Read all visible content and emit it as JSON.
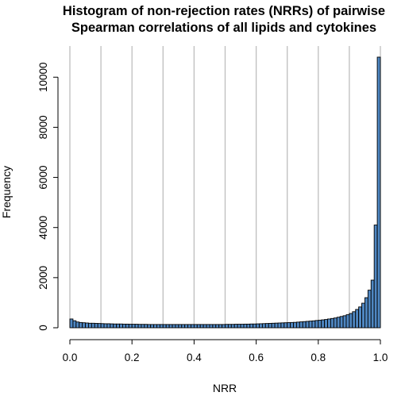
{
  "chart_data": {
    "type": "bar",
    "title": [
      "Histogram of non-rejection rates (NRRs) of pairwise",
      "Spearman correlations of all lipids and cytokines"
    ],
    "xlabel": "NRR",
    "ylabel": "Frequency",
    "xlim": [
      0,
      1
    ],
    "ylim": [
      0,
      12500
    ],
    "x_ticks": [
      0.0,
      0.2,
      0.4,
      0.6,
      0.8,
      1.0
    ],
    "x_tick_labels": [
      "0.0",
      "0.2",
      "0.4",
      "0.6",
      "0.8",
      "1.0"
    ],
    "y_ticks": [
      0,
      2000,
      4000,
      6000,
      8000,
      10000
    ],
    "y_tick_labels": [
      "0",
      "2000",
      "4000",
      "6000",
      "8000",
      "10000"
    ],
    "vertical_gridlines": [
      0.0,
      0.1,
      0.2,
      0.3,
      0.4,
      0.5,
      0.6,
      0.7,
      0.8,
      0.9,
      1.0
    ],
    "grid_color": "#bebebe",
    "bar_color": "#4f87c2",
    "bin_width": 0.01,
    "bin_starts": [
      0.0,
      0.01,
      0.02,
      0.03,
      0.04,
      0.05,
      0.06,
      0.07,
      0.08,
      0.09,
      0.1,
      0.11,
      0.12,
      0.13,
      0.14,
      0.15,
      0.16,
      0.17,
      0.18,
      0.19,
      0.2,
      0.21,
      0.22,
      0.23,
      0.24,
      0.25,
      0.26,
      0.27,
      0.28,
      0.29,
      0.3,
      0.31,
      0.32,
      0.33,
      0.34,
      0.35,
      0.36,
      0.37,
      0.38,
      0.39,
      0.4,
      0.41,
      0.42,
      0.43,
      0.44,
      0.45,
      0.46,
      0.47,
      0.48,
      0.49,
      0.5,
      0.51,
      0.52,
      0.53,
      0.54,
      0.55,
      0.56,
      0.57,
      0.58,
      0.59,
      0.6,
      0.61,
      0.62,
      0.63,
      0.64,
      0.65,
      0.66,
      0.67,
      0.68,
      0.69,
      0.7,
      0.71,
      0.72,
      0.73,
      0.74,
      0.75,
      0.76,
      0.77,
      0.78,
      0.79,
      0.8,
      0.81,
      0.82,
      0.83,
      0.84,
      0.85,
      0.86,
      0.87,
      0.88,
      0.89,
      0.9,
      0.91,
      0.92,
      0.93,
      0.94,
      0.95,
      0.96,
      0.97,
      0.98,
      0.99
    ],
    "values": [
      350,
      280,
      230,
      210,
      200,
      190,
      180,
      180,
      175,
      170,
      165,
      160,
      160,
      155,
      150,
      150,
      150,
      145,
      145,
      140,
      140,
      140,
      135,
      135,
      135,
      130,
      130,
      130,
      130,
      130,
      130,
      130,
      130,
      130,
      130,
      130,
      130,
      130,
      130,
      130,
      130,
      130,
      130,
      130,
      130,
      130,
      130,
      130,
      130,
      130,
      135,
      135,
      135,
      140,
      140,
      140,
      145,
      145,
      150,
      150,
      155,
      160,
      165,
      170,
      175,
      180,
      185,
      190,
      195,
      200,
      205,
      210,
      215,
      225,
      235,
      245,
      255,
      265,
      275,
      290,
      300,
      315,
      330,
      350,
      370,
      390,
      420,
      450,
      480,
      520,
      570,
      640,
      730,
      830,
      980,
      1200,
      1500,
      1900,
      4100,
      10800
    ]
  }
}
